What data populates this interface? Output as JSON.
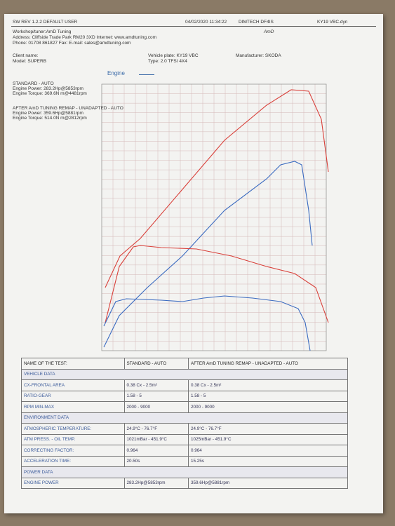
{
  "header": {
    "software": "SW REV 1.2.2   DEFAULT USER",
    "datetime": "04/02/2020 11:34:22",
    "device": "DIMTECH DF4IS",
    "file": "KY19 VBC.dyn"
  },
  "workshop": {
    "name": "Workshop/tuner:AmD Tuning",
    "address": "Address: Cliffside Trade Park RM20 3XD Internet: www.amdtuning.com",
    "phone": "Phone: 01708 861827 Fax:  E-mail: sales@amdtuning.com",
    "logo": "AmD"
  },
  "client": {
    "name": "Client name:",
    "model": "Model: SUPERB",
    "plate": "Vehicle plate: KY19 VBC",
    "type": "Type: 2.0 TFSI 4X4",
    "manufacturer": "Manufacturer: SKODA"
  },
  "legend": "Engine",
  "tests": [
    {
      "name": "STANDARD - AUTO",
      "power": "Engine Power: 283.2Hp@5853rpm",
      "torque": "Engine Torque: 369.6N m@4481rpm"
    },
    {
      "name": "AFTER AmD TUNING REMAP - UNADAPTED - AUTO",
      "power": "Engine Power: 359.6Hp@5881rpm",
      "torque": "Engine Torque: 514.0N m@2812rpm"
    }
  ],
  "table": {
    "header": [
      "NAME OF THE TEST:",
      "STANDARD - AUTO",
      "AFTER AmD TUNING REMAP - UNADAPTED - AUTO"
    ],
    "rows": [
      [
        "VEHICLE DATA"
      ],
      [
        "CX-FRONTAL AREA",
        "0.38 Cx - 2.5m²",
        "0.38 Cx - 2.5m²"
      ],
      [
        "RATIO-GEAR",
        "1.58 - 5",
        "1.58 - 5"
      ],
      [
        "RPM MIN-MAX",
        "2000 - 9000",
        "2000 - 9000"
      ],
      [
        "ENVIRONMENT DATA"
      ],
      [
        "ATMOSPHERIC TEMPERATURE:",
        "24.9°C - 76.7°F",
        "24.9°C - 76.7°F"
      ],
      [
        "ATM PRESS. - OIL TEMP.",
        "1021mBar - 451.9°C",
        "1025mBar - 451.9°C"
      ],
      [
        "CORRECTING FACTOR:",
        "0.964",
        "0.964"
      ],
      [
        "ACCELERATION TIME:",
        "20.50s",
        "15.25s"
      ],
      [
        "POWER DATA"
      ],
      [
        "ENGINE POWER",
        "283.2Hp@5853rpm",
        "359.6Hp@5881rpm"
      ]
    ]
  }
}
